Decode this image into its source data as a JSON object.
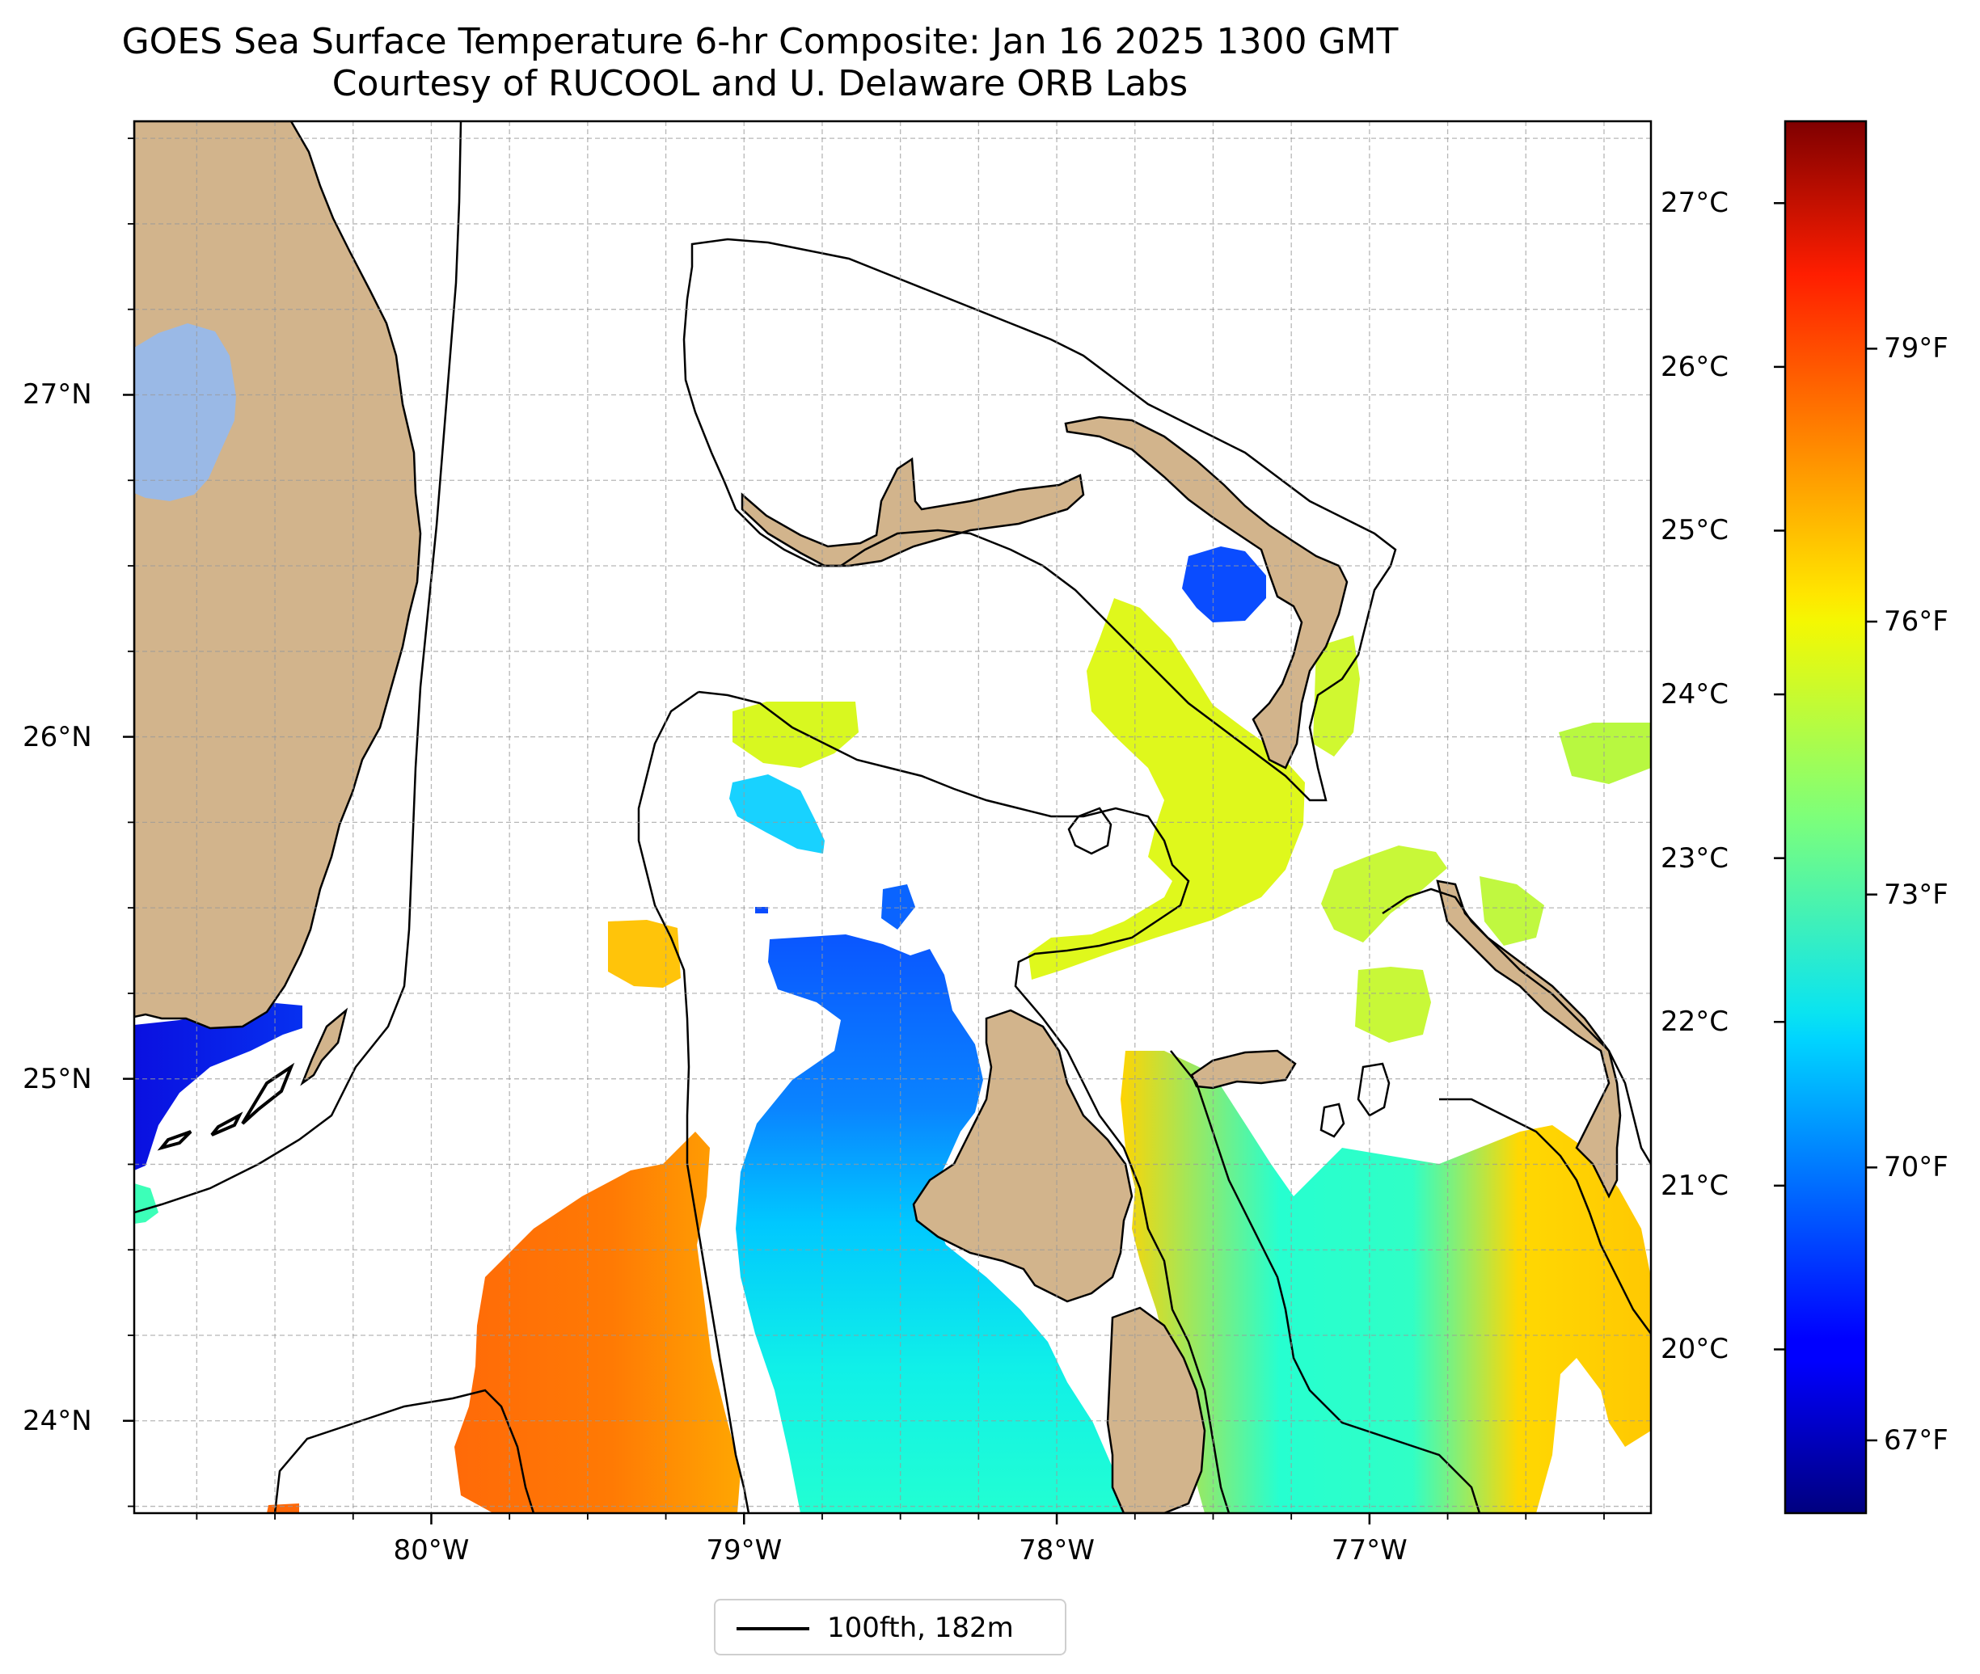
{
  "title": {
    "line1": "GOES Sea Surface Temperature 6-hr Composite: Jan 16 2025 1300 GMT",
    "line2": "Courtesy of RUCOOL and U. Delaware ORB Labs"
  },
  "map": {
    "lon_range": [
      -80.95,
      -76.1
    ],
    "lat_range": [
      23.73,
      27.8
    ],
    "lat_ticks": [
      {
        "value": 27,
        "label": "27°N"
      },
      {
        "value": 26,
        "label": "26°N"
      },
      {
        "value": 25,
        "label": "25°N"
      },
      {
        "value": 24,
        "label": "24°N"
      }
    ],
    "lon_ticks": [
      {
        "value": -80,
        "label": "80°W"
      },
      {
        "value": -79,
        "label": "79°W"
      },
      {
        "value": -78,
        "label": "78°W"
      },
      {
        "value": -77,
        "label": "77°W"
      }
    ],
    "gridlines": "dashed",
    "colors": {
      "land": "#d2b48c",
      "lake": "#9ab9e6",
      "coastline": "#000000",
      "isobath": "#000000",
      "no_data": "#ffffff"
    },
    "colormap": "jet"
  },
  "colorbar": {
    "celsius_ticks": [
      {
        "value": 27,
        "label": "27°C"
      },
      {
        "value": 26,
        "label": "26°C"
      },
      {
        "value": 25,
        "label": "25°C"
      },
      {
        "value": 24,
        "label": "24°C"
      },
      {
        "value": 23,
        "label": "23°C"
      },
      {
        "value": 22,
        "label": "22°C"
      },
      {
        "value": 21,
        "label": "21°C"
      },
      {
        "value": 20,
        "label": "20°C"
      }
    ],
    "fahrenheit_ticks": [
      {
        "value": 79,
        "label": "79°F"
      },
      {
        "value": 76,
        "label": "76°F"
      },
      {
        "value": 73,
        "label": "73°F"
      },
      {
        "value": 70,
        "label": "70°F"
      },
      {
        "value": 67,
        "label": "67°F"
      }
    ],
    "range_celsius": [
      19.0,
      27.5
    ]
  },
  "legend": {
    "label": "100fth, 182m",
    "line_color": "#000000"
  }
}
